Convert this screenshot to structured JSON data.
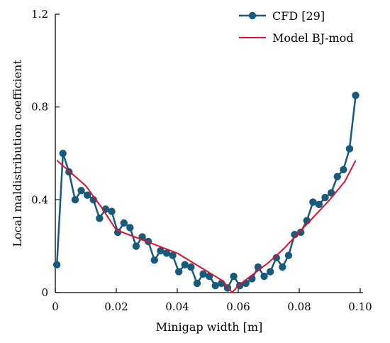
{
  "chart_data": {
    "type": "line",
    "xlabel": "Minigap width [m]",
    "ylabel": "Local maldistribution coefficient",
    "xlim": [
      0,
      0.1
    ],
    "ylim": [
      0,
      1.2
    ],
    "xticks": [
      "0",
      "0.02",
      "0.04",
      "0.06",
      "0.08",
      "0.10"
    ],
    "xtick_values": [
      0,
      0.02,
      0.04,
      0.06,
      0.08,
      0.1
    ],
    "yticks": [
      "0",
      "0.4",
      "0.8",
      "1.2"
    ],
    "ytick_values": [
      0,
      0.4,
      0.8,
      1.2
    ],
    "grid": false,
    "legend_position": "top-right",
    "series": [
      {
        "name": "CFD [29]",
        "style": "line-markers",
        "color": "#175a7b",
        "x": [
          0.0005,
          0.0025,
          0.0045,
          0.0065,
          0.0085,
          0.0105,
          0.0125,
          0.0145,
          0.0165,
          0.0185,
          0.0205,
          0.0225,
          0.0245,
          0.0265,
          0.0285,
          0.0305,
          0.0325,
          0.0345,
          0.0365,
          0.0385,
          0.0405,
          0.0425,
          0.0445,
          0.0465,
          0.0485,
          0.0505,
          0.0525,
          0.0545,
          0.0565,
          0.0585,
          0.0605,
          0.0625,
          0.0645,
          0.0665,
          0.0685,
          0.0705,
          0.0725,
          0.0745,
          0.0765,
          0.0785,
          0.0805,
          0.0825,
          0.0845,
          0.0865,
          0.0885,
          0.0905,
          0.0925,
          0.0945,
          0.0965,
          0.0985
        ],
        "y": [
          0.12,
          0.6,
          0.52,
          0.4,
          0.44,
          0.42,
          0.4,
          0.32,
          0.36,
          0.35,
          0.26,
          0.3,
          0.28,
          0.2,
          0.24,
          0.22,
          0.14,
          0.18,
          0.17,
          0.16,
          0.09,
          0.12,
          0.11,
          0.04,
          0.08,
          0.07,
          0.03,
          0.04,
          0.02,
          0.07,
          0.03,
          0.04,
          0.06,
          0.11,
          0.07,
          0.09,
          0.15,
          0.11,
          0.16,
          0.25,
          0.26,
          0.31,
          0.39,
          0.38,
          0.41,
          0.43,
          0.5,
          0.53,
          0.62,
          0.85
        ]
      },
      {
        "name": "Model BJ-mod",
        "style": "line",
        "color": "#e0102f",
        "x": [
          0.0005,
          0.01,
          0.015,
          0.02,
          0.03,
          0.04,
          0.05,
          0.055,
          0.058,
          0.06,
          0.065,
          0.07,
          0.075,
          0.08,
          0.085,
          0.09,
          0.095,
          0.0985
        ],
        "y": [
          0.57,
          0.46,
          0.37,
          0.27,
          0.22,
          0.17,
          0.09,
          0.05,
          0.0,
          0.03,
          0.08,
          0.13,
          0.19,
          0.26,
          0.33,
          0.4,
          0.48,
          0.57
        ]
      }
    ]
  }
}
